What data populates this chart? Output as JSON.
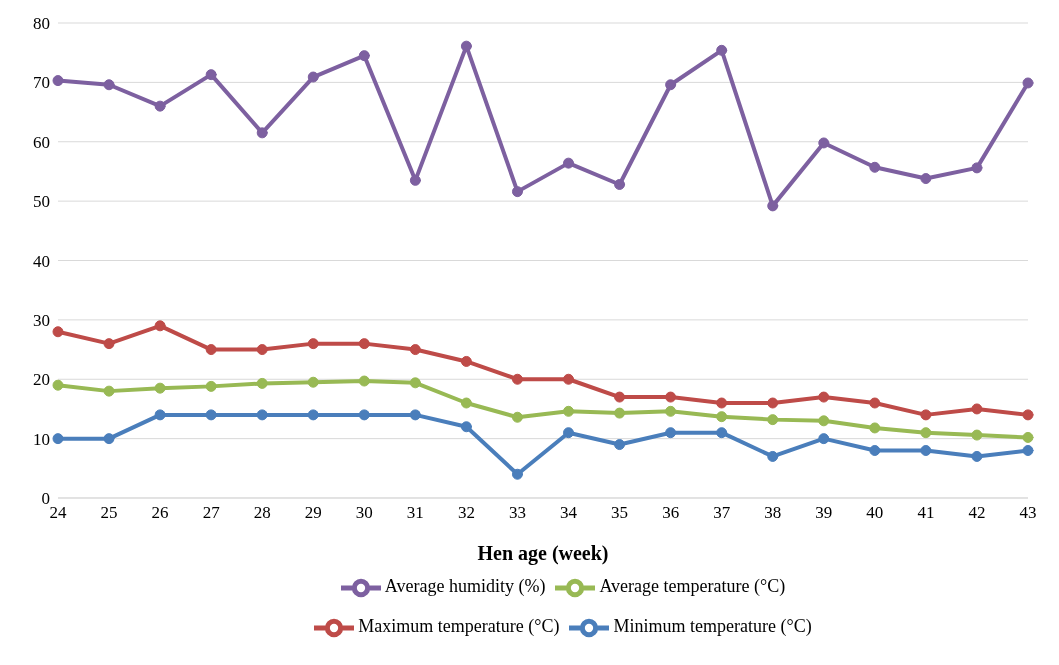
{
  "chart_data": {
    "type": "line",
    "xlabel": "Hen age (week)",
    "categories": [
      "24",
      "25",
      "26",
      "27",
      "28",
      "29",
      "30",
      "31",
      "32",
      "33",
      "34",
      "35",
      "36",
      "37",
      "38",
      "39",
      "40",
      "41",
      "42",
      "43"
    ],
    "series": [
      {
        "name": "Minimum temperature (°C)",
        "color": "#4a7ebb",
        "values": [
          10,
          10,
          14,
          14,
          14,
          14,
          14,
          14,
          12,
          4,
          11,
          9,
          11,
          11,
          7,
          10,
          8,
          8,
          7,
          8
        ]
      },
      {
        "name": "Maximum temperature (°C)",
        "color": "#be4b48",
        "values": [
          28,
          26,
          29,
          25,
          25,
          26,
          26,
          25,
          23,
          20,
          20,
          17,
          17,
          16,
          16,
          17,
          16,
          14,
          15,
          14
        ]
      },
      {
        "name": "Average temperature (°C)",
        "color": "#98b954",
        "values": [
          19,
          18,
          18.5,
          18.8,
          19.3,
          19.5,
          19.7,
          19.4,
          16,
          13.6,
          14.6,
          14.3,
          14.6,
          13.7,
          13.2,
          13,
          11.8,
          11,
          10.6,
          10.2
        ]
      },
      {
        "name": "Average humidity (%)",
        "color": "#7d60a0",
        "values": [
          70.3,
          69.6,
          66,
          71.3,
          61.5,
          70.9,
          74.5,
          53.5,
          76.1,
          51.6,
          56.4,
          52.8,
          69.6,
          75.4,
          49.2,
          59.8,
          55.7,
          53.8,
          55.6,
          69.9
        ]
      }
    ],
    "ylim": [
      0,
      80
    ],
    "yticks": [
      0,
      10,
      20,
      30,
      40,
      50,
      60,
      70,
      80
    ],
    "grid": "y",
    "legend": "bottom",
    "marker": "circle",
    "line_style": "solid"
  }
}
